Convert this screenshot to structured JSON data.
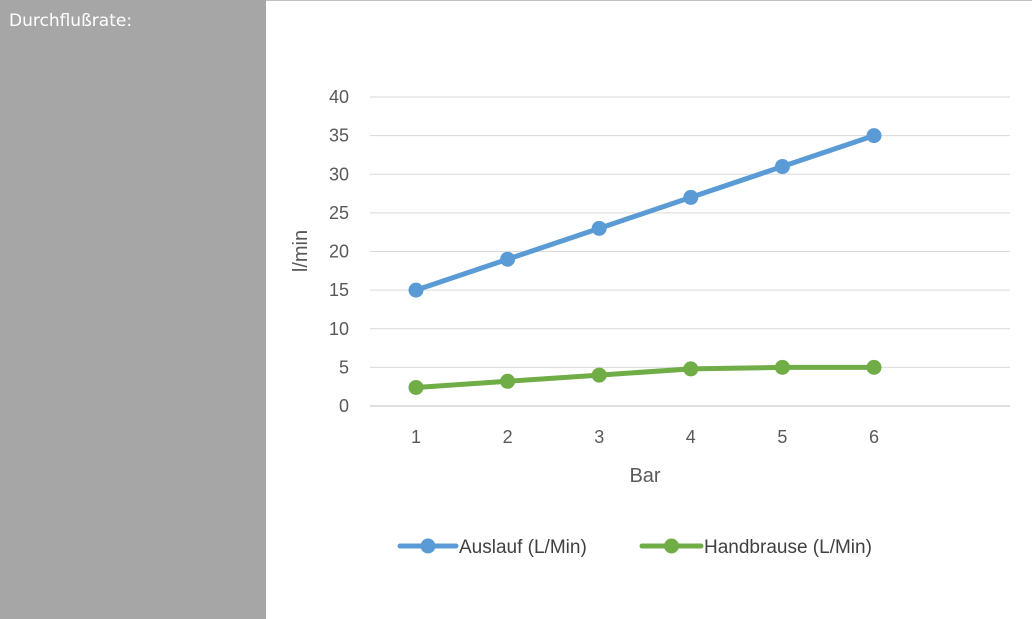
{
  "sidebar": {
    "label": "Durchflußrate:"
  },
  "chart_data": {
    "type": "line",
    "title": "",
    "xlabel": "Bar",
    "ylabel": "l/min",
    "x": [
      1,
      2,
      3,
      4,
      5,
      6
    ],
    "categories": [
      "1",
      "2",
      "3",
      "4",
      "5",
      "6"
    ],
    "ylim": [
      0,
      40
    ],
    "yticks": [
      0,
      5,
      10,
      15,
      20,
      25,
      30,
      35,
      40
    ],
    "grid": true,
    "legend_position": "bottom",
    "series": [
      {
        "name": "Auslauf (L/Min)",
        "color": "#5b9bd5",
        "values": [
          15,
          19,
          23,
          27,
          31,
          35
        ]
      },
      {
        "name": "Handbrause (L/Min)",
        "color": "#70ad47",
        "values": [
          2.4,
          3.2,
          4.0,
          4.8,
          5.0,
          5.0
        ]
      }
    ]
  }
}
